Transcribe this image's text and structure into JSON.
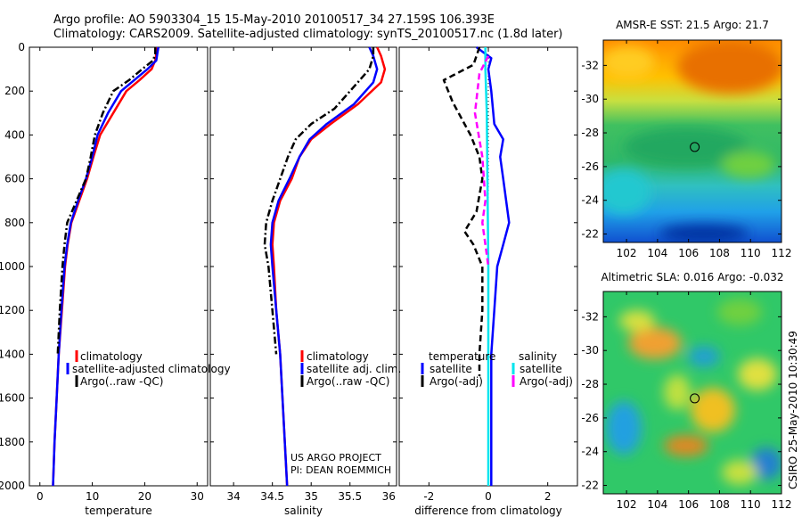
{
  "title_line1": "Argo profile: AO 5903304_15 15-May-2010 20100517_34 27.159S 106.393E",
  "title_line2": "Climatology: CARS2009. Satellite-adjusted climatology: synTS_20100517.nc (1.8d later)",
  "footer_credit": [
    "US ARGO PROJECT",
    "PI: DEAN ROEMMICH"
  ],
  "side_timestamp": "CSIRO 25-May-2010 10:30:49",
  "colors": {
    "climatology": "#ff0000",
    "satellite": "#0000ff",
    "argo": "#000000",
    "argo_sal_adj": "#ff00ff",
    "satellite_sal": "#00e5ee"
  },
  "chart_data": [
    {
      "type": "line",
      "xlabel": "temperature",
      "ylabel": "",
      "xlim": [
        -2,
        32
      ],
      "ylim": [
        2000,
        0
      ],
      "xticks": [
        0,
        10,
        20,
        30
      ],
      "yticks": [
        0,
        200,
        400,
        600,
        800,
        1000,
        1200,
        1400,
        1600,
        1800,
        2000
      ],
      "legend": {
        "placement": "lower-right",
        "entries": [
          "climatology",
          "satellite-adjusted climatology",
          "Argo(..raw -QC)"
        ]
      },
      "series": [
        {
          "name": "climatology",
          "color": "#ff0000",
          "style": "solid",
          "points": [
            [
              22.3,
              0
            ],
            [
              22.2,
              30
            ],
            [
              22.0,
              60
            ],
            [
              21.3,
              100
            ],
            [
              19.0,
              150
            ],
            [
              16.5,
              200
            ],
            [
              14.0,
              300
            ],
            [
              11.5,
              400
            ],
            [
              10.2,
              500
            ],
            [
              9.0,
              600
            ],
            [
              7.5,
              700
            ],
            [
              6.0,
              800
            ],
            [
              5.3,
              900
            ],
            [
              4.8,
              1000
            ],
            [
              4.2,
              1200
            ],
            [
              3.6,
              1400
            ],
            [
              3.2,
              1600
            ],
            [
              2.8,
              1800
            ],
            [
              2.5,
              2000
            ]
          ]
        },
        {
          "name": "satellite-adjusted climatology",
          "color": "#0000ff",
          "style": "solid",
          "points": [
            [
              22.6,
              0
            ],
            [
              22.4,
              30
            ],
            [
              22.2,
              60
            ],
            [
              20.5,
              100
            ],
            [
              18.0,
              150
            ],
            [
              15.5,
              200
            ],
            [
              13.0,
              300
            ],
            [
              11.0,
              400
            ],
            [
              10.0,
              500
            ],
            [
              8.8,
              600
            ],
            [
              7.3,
              700
            ],
            [
              5.9,
              800
            ],
            [
              5.2,
              900
            ],
            [
              4.7,
              1000
            ],
            [
              4.1,
              1200
            ],
            [
              3.6,
              1400
            ],
            [
              3.2,
              1600
            ],
            [
              2.8,
              1800
            ],
            [
              2.5,
              2000
            ]
          ]
        },
        {
          "name": "Argo(..raw -QC)",
          "color": "#000000",
          "style": "dashdot",
          "points": [
            [
              22.0,
              0
            ],
            [
              22.0,
              30
            ],
            [
              21.6,
              60
            ],
            [
              19.5,
              100
            ],
            [
              17.0,
              150
            ],
            [
              14.0,
              200
            ],
            [
              12.0,
              300
            ],
            [
              10.5,
              400
            ],
            [
              9.7,
              500
            ],
            [
              8.8,
              600
            ],
            [
              7.0,
              700
            ],
            [
              5.2,
              800
            ],
            [
              4.7,
              900
            ],
            [
              4.3,
              1000
            ],
            [
              3.8,
              1200
            ],
            [
              3.4,
              1400
            ]
          ]
        }
      ]
    },
    {
      "type": "line",
      "xlabel": "salinity",
      "xlim": [
        33.7,
        36.1
      ],
      "ylim": [
        2000,
        0
      ],
      "xticks": [
        34,
        34.5,
        35,
        35.5,
        36
      ],
      "yticks": [
        0,
        200,
        400,
        600,
        800,
        1000,
        1200,
        1400,
        1600,
        1800,
        2000
      ],
      "legend": {
        "placement": "lower-right",
        "entries": [
          "climatology",
          "satellite adj. clim.",
          "Argo(..raw -QC)"
        ]
      },
      "series": [
        {
          "name": "climatology",
          "color": "#ff0000",
          "style": "solid",
          "points": [
            [
              35.85,
              0
            ],
            [
              35.9,
              40
            ],
            [
              35.95,
              100
            ],
            [
              35.9,
              160
            ],
            [
              35.6,
              260
            ],
            [
              35.25,
              350
            ],
            [
              35.0,
              420
            ],
            [
              34.85,
              500
            ],
            [
              34.75,
              600
            ],
            [
              34.6,
              700
            ],
            [
              34.52,
              800
            ],
            [
              34.5,
              900
            ],
            [
              34.52,
              1000
            ],
            [
              34.55,
              1200
            ],
            [
              34.6,
              1400
            ],
            [
              34.63,
              1600
            ],
            [
              34.66,
              1800
            ],
            [
              34.69,
              2000
            ]
          ]
        },
        {
          "name": "satellite adj. clim.",
          "color": "#0000ff",
          "style": "solid",
          "points": [
            [
              35.75,
              0
            ],
            [
              35.8,
              40
            ],
            [
              35.85,
              100
            ],
            [
              35.8,
              160
            ],
            [
              35.55,
              260
            ],
            [
              35.2,
              350
            ],
            [
              34.98,
              420
            ],
            [
              34.85,
              500
            ],
            [
              34.72,
              600
            ],
            [
              34.58,
              700
            ],
            [
              34.5,
              800
            ],
            [
              34.48,
              900
            ],
            [
              34.5,
              1000
            ],
            [
              34.55,
              1200
            ],
            [
              34.6,
              1400
            ],
            [
              34.63,
              1600
            ],
            [
              34.66,
              1800
            ],
            [
              34.69,
              2000
            ]
          ]
        },
        {
          "name": "Argo(..raw -QC)",
          "color": "#000000",
          "style": "dashdot",
          "points": [
            [
              35.8,
              0
            ],
            [
              35.8,
              40
            ],
            [
              35.75,
              100
            ],
            [
              35.6,
              160
            ],
            [
              35.3,
              280
            ],
            [
              35.0,
              350
            ],
            [
              34.8,
              420
            ],
            [
              34.7,
              500
            ],
            [
              34.6,
              600
            ],
            [
              34.5,
              700
            ],
            [
              34.42,
              800
            ],
            [
              34.4,
              900
            ],
            [
              34.45,
              1000
            ],
            [
              34.5,
              1200
            ],
            [
              34.55,
              1400
            ]
          ]
        }
      ]
    },
    {
      "type": "line",
      "xlabel": "difference from climatology",
      "xlim": [
        -3,
        3
      ],
      "ylim": [
        2000,
        0
      ],
      "xticks": [
        -2,
        0,
        2
      ],
      "yticks": [
        0,
        200,
        400,
        600,
        800,
        1000,
        1200,
        1400,
        1600,
        1800,
        2000
      ],
      "legend": {
        "placement": "lower",
        "temperature_title": "temperature",
        "salinity_title": "salinity",
        "entries": [
          "satellite",
          "Argo(-adj)",
          "satellite",
          "Argo(-adj)"
        ]
      },
      "series": [
        {
          "name": "temperature satellite",
          "color": "#0000ff",
          "style": "solid",
          "points": [
            [
              -0.4,
              0
            ],
            [
              0.1,
              50
            ],
            [
              0.0,
              100
            ],
            [
              0.1,
              200
            ],
            [
              0.2,
              350
            ],
            [
              0.5,
              420
            ],
            [
              0.4,
              500
            ],
            [
              0.5,
              600
            ],
            [
              0.6,
              700
            ],
            [
              0.7,
              800
            ],
            [
              0.5,
              900
            ],
            [
              0.3,
              1000
            ],
            [
              0.2,
              1200
            ],
            [
              0.1,
              1400
            ],
            [
              0.1,
              1600
            ],
            [
              0.1,
              1800
            ],
            [
              0.1,
              2000
            ]
          ]
        },
        {
          "name": "temperature Argo(-adj)",
          "color": "#000000",
          "style": "dashed",
          "points": [
            [
              -0.3,
              0
            ],
            [
              -0.5,
              80
            ],
            [
              -1.5,
              150
            ],
            [
              -1.2,
              250
            ],
            [
              -0.8,
              350
            ],
            [
              -0.6,
              400
            ],
            [
              -0.3,
              500
            ],
            [
              -0.2,
              600
            ],
            [
              -0.4,
              750
            ],
            [
              -0.8,
              840
            ],
            [
              -0.5,
              900
            ],
            [
              -0.2,
              1000
            ],
            [
              -0.2,
              1200
            ],
            [
              -0.3,
              1400
            ],
            [
              -0.3,
              1500
            ]
          ]
        },
        {
          "name": "salinity satellite",
          "color": "#00e5ee",
          "style": "solid",
          "points": [
            [
              -0.1,
              0
            ],
            [
              -0.1,
              100
            ],
            [
              -0.05,
              300
            ],
            [
              -0.03,
              600
            ],
            [
              0.0,
              1000
            ],
            [
              0.0,
              1500
            ],
            [
              0.0,
              2000
            ]
          ]
        },
        {
          "name": "salinity Argo(-adj)",
          "color": "#ff00ff",
          "style": "dashed",
          "points": [
            [
              0.0,
              40
            ],
            [
              -0.3,
              120
            ],
            [
              -0.45,
              300
            ],
            [
              -0.2,
              500
            ],
            [
              -0.1,
              700
            ],
            [
              -0.2,
              800
            ],
            [
              -0.1,
              900
            ],
            [
              0.0,
              1000
            ]
          ]
        }
      ]
    },
    {
      "type": "heatmap",
      "title": "AMSR-E SST: 21.5 Argo: 21.7",
      "xlim": [
        100.5,
        112
      ],
      "ylim": [
        -33.5,
        -21.5
      ],
      "xticks": [
        102,
        104,
        106,
        108,
        110,
        112
      ],
      "yticks": [
        -22,
        -24,
        -26,
        -28,
        -30,
        -32
      ],
      "marker": [
        106.4,
        -27.16
      ]
    },
    {
      "type": "heatmap",
      "title": "Altimetric SLA: 0.016 Argo: -0.032",
      "xlim": [
        100.5,
        112
      ],
      "ylim": [
        -33.5,
        -21.5
      ],
      "xticks": [
        102,
        104,
        106,
        108,
        110,
        112
      ],
      "yticks": [
        -22,
        -24,
        -26,
        -28,
        -30,
        -32
      ],
      "marker": [
        106.4,
        -27.16
      ]
    }
  ]
}
